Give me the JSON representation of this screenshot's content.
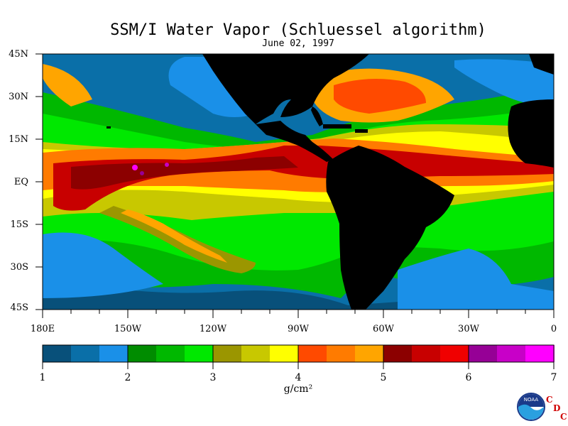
{
  "title": "SSM/I Water Vapor (Schluessel algorithm)",
  "date": "June 02, 1997",
  "lat_labels": [
    "45N",
    "30N",
    "15N",
    "EQ",
    "15S",
    "30S",
    "45S"
  ],
  "lon_labels": [
    "180E",
    "150W",
    "120W",
    "90W",
    "60W",
    "30W",
    "0"
  ],
  "colorbar": {
    "ticks": [
      "1",
      "2",
      "3",
      "4",
      "5",
      "6",
      "7"
    ],
    "units": "g/cm²",
    "colors": [
      "#08507a",
      "#0a6fa8",
      "#1a90e8",
      "#008c00",
      "#00b800",
      "#00e800",
      "#9b9600",
      "#c8c800",
      "#ffff00",
      "#ff4a00",
      "#ff7b00",
      "#ffa500",
      "#8c0000",
      "#c80000",
      "#f00000",
      "#960096",
      "#c800c8",
      "#ff00ff"
    ]
  },
  "logo": {
    "text": "NOAA",
    "letters": [
      "C",
      "D",
      "C"
    ]
  }
}
